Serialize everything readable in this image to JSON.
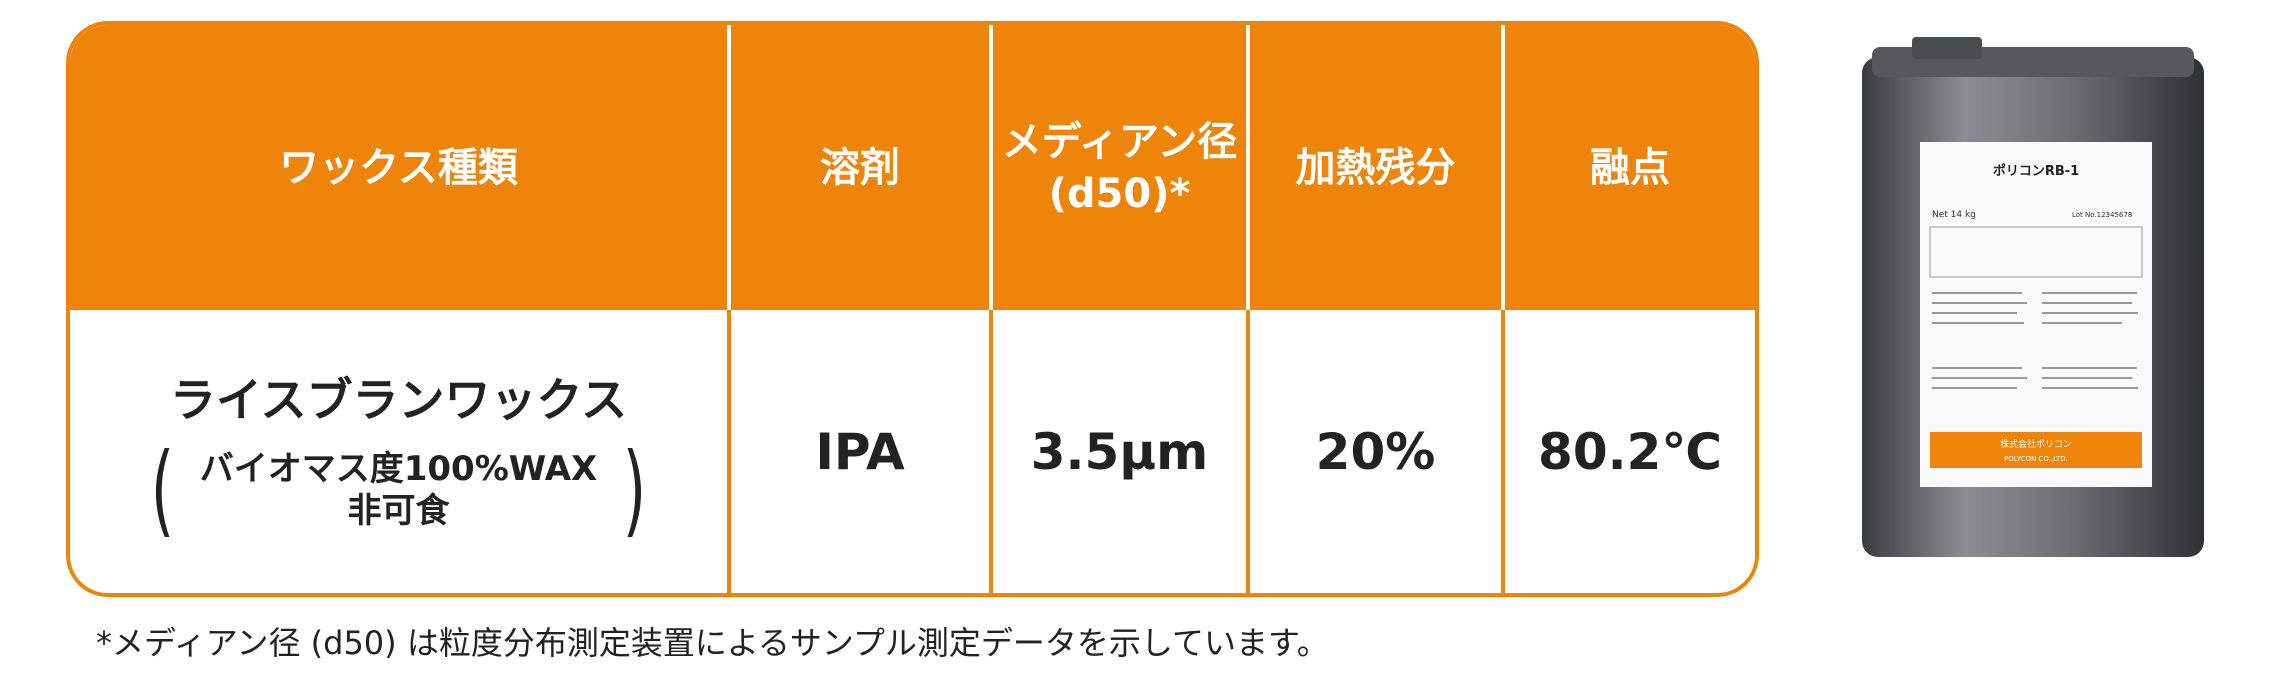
{
  "table": {
    "headers": [
      {
        "lines": [
          "ワックス種類"
        ]
      },
      {
        "lines": [
          "溶剤"
        ]
      },
      {
        "lines": [
          "メディアン径",
          "(d50)*"
        ]
      },
      {
        "lines": [
          "加熱残分"
        ]
      },
      {
        "lines": [
          "融点"
        ]
      }
    ],
    "row": {
      "name": "ライスブランワックス",
      "note": {
        "open": "(",
        "lines": [
          "バイオマス度100%WAX",
          "非可食"
        ],
        "close": ")"
      },
      "solvent": "IPA",
      "median": "3.5μm",
      "residue": "20%",
      "melting": "80.2℃"
    }
  },
  "footnote": "*メディアン径 (d50) は粒度分布測定装置によるサンプル測定データを示しています。",
  "can": {
    "product": "ポリコンRB-1",
    "net": "Net 14 kg",
    "lot": "Lot No.12345678",
    "company": "株式会社ポリコン",
    "company_en": "POLYCON CO.,LTD."
  }
}
